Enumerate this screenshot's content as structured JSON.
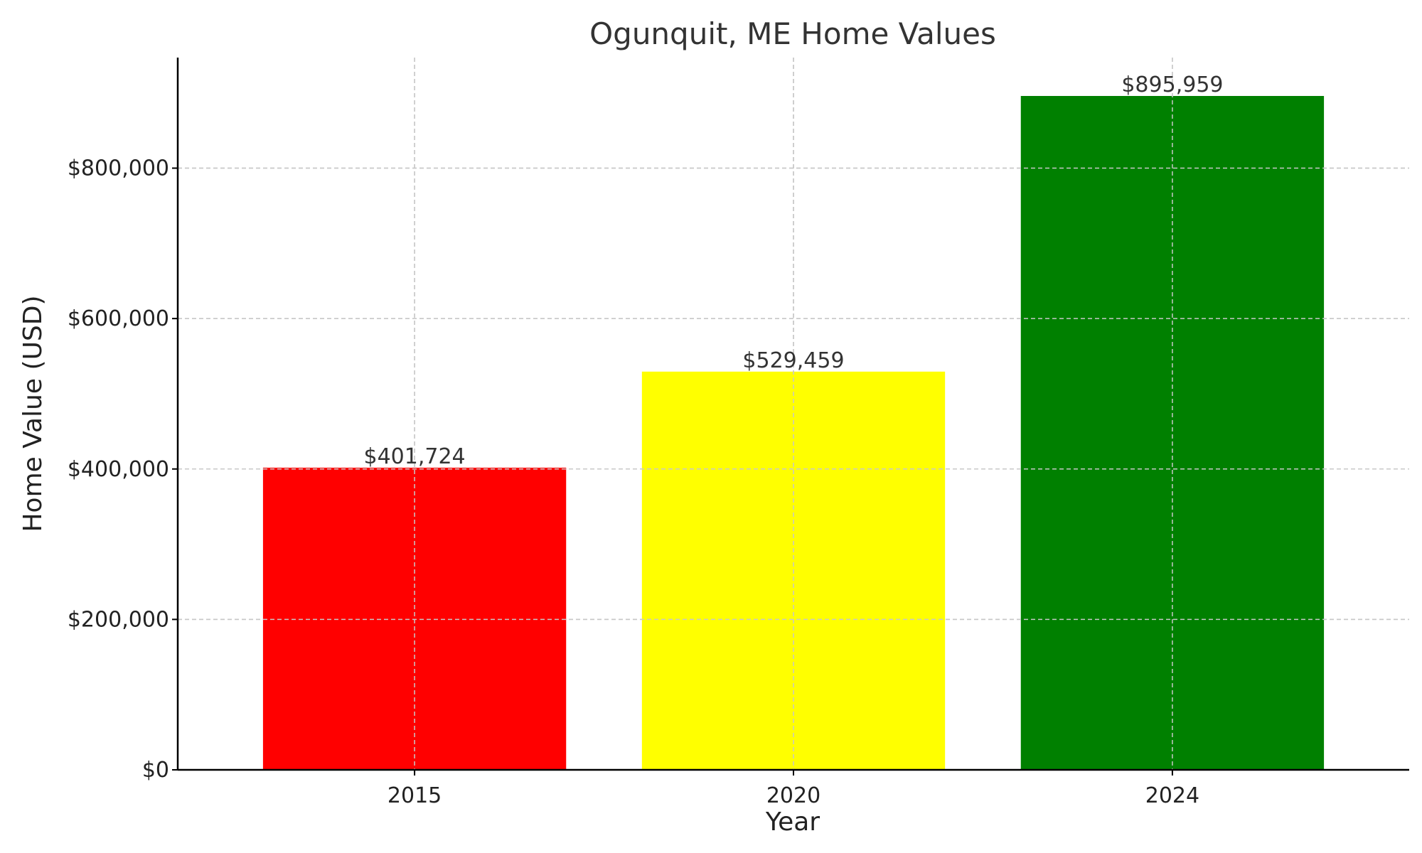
{
  "chart_data": {
    "type": "bar",
    "title": "Ogunquit, ME Home Values",
    "xlabel": "Year",
    "ylabel": "Home Value (USD)",
    "categories": [
      "2015",
      "2020",
      "2024"
    ],
    "values": [
      401724,
      529459,
      895959
    ],
    "value_labels": [
      "$401,724",
      "$529,459",
      "$895,959"
    ],
    "colors": [
      "#ff0000",
      "#ffff00",
      "#008000"
    ],
    "ylim": [
      0,
      947000
    ],
    "yticks": [
      0,
      200000,
      400000,
      600000,
      800000
    ],
    "ytick_labels": [
      "$0",
      "$200,000",
      "$400,000",
      "$600,000",
      "$800,000"
    ],
    "grid": true,
    "legend": "none"
  }
}
